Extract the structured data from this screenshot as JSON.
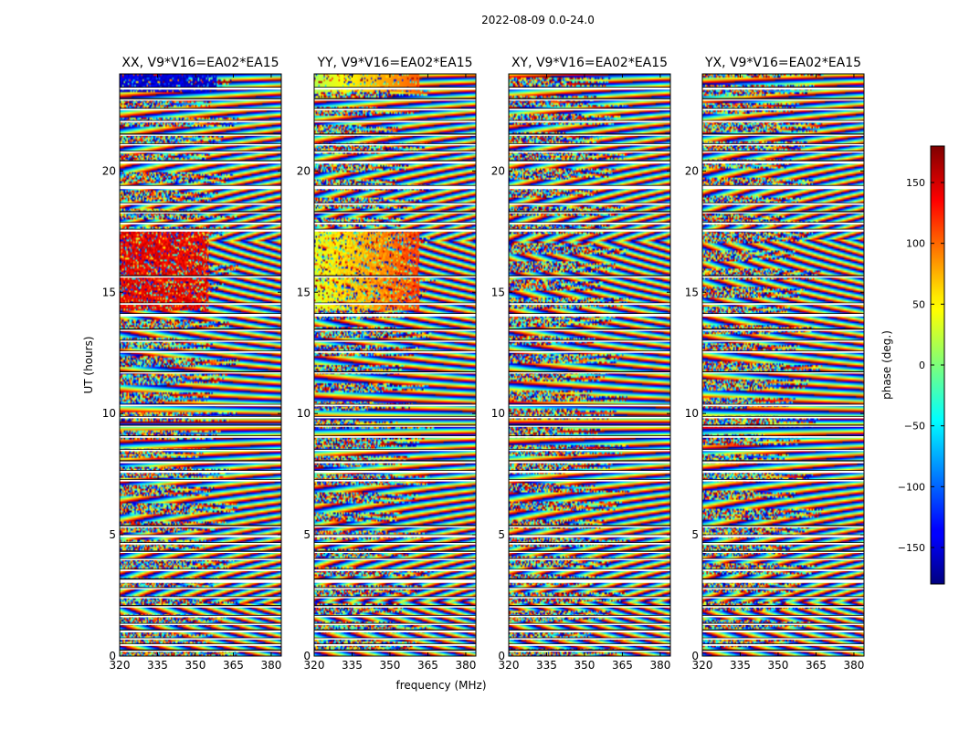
{
  "chart_data": {
    "type": "heatmap",
    "title": "2022-08-09 0.0-24.0",
    "xlabel": "frequency (MHz)",
    "ylabel": "UT (hours)",
    "xlim": [
      320,
      384
    ],
    "ylim": [
      0,
      24
    ],
    "xticks": [
      320,
      335,
      350,
      365,
      380
    ],
    "yticks": [
      0,
      5,
      10,
      15,
      20
    ],
    "panels": [
      {
        "title": "XX, V9*V16=EA02*EA15",
        "polarization": "XX"
      },
      {
        "title": "YY, V9*V16=EA02*EA15",
        "polarization": "YY"
      },
      {
        "title": "XY, V9*V16=EA02*EA15",
        "polarization": "XY"
      },
      {
        "title": "YX, V9*V16=EA02*EA15",
        "polarization": "YX"
      }
    ],
    "colorbar": {
      "label": "phase (deg.)",
      "range": [
        -180,
        180
      ],
      "ticks": [
        -150,
        -100,
        -50,
        0,
        50,
        100,
        150
      ],
      "colormap": "jet"
    },
    "flagged_time_bands_hours": [
      [
        0.18,
        0.25
      ],
      [
        0.42,
        0.5
      ],
      [
        0.68,
        0.75
      ],
      [
        0.98,
        1.08
      ],
      [
        1.28,
        1.35
      ],
      [
        1.6,
        1.68
      ],
      [
        2.0,
        2.08
      ],
      [
        2.38,
        2.45
      ],
      [
        2.75,
        2.82
      ],
      [
        3.02,
        3.18
      ],
      [
        3.5,
        3.58
      ],
      [
        3.95,
        4.02
      ],
      [
        4.25,
        4.32
      ],
      [
        4.6,
        4.68
      ],
      [
        4.9,
        5.0
      ],
      [
        5.3,
        5.38
      ],
      [
        7.2,
        7.28
      ],
      [
        7.55,
        7.65
      ],
      [
        7.95,
        8.05
      ],
      [
        8.45,
        8.52
      ],
      [
        9.0,
        9.08
      ],
      [
        9.45,
        9.52
      ],
      [
        9.8,
        9.88
      ],
      [
        10.3,
        10.38
      ],
      [
        11.65,
        11.72
      ],
      [
        12.5,
        12.58
      ],
      [
        12.95,
        13.02
      ],
      [
        13.4,
        13.48
      ],
      [
        14.0,
        14.12
      ],
      [
        14.48,
        14.56
      ],
      [
        15.6,
        15.68
      ],
      [
        17.5,
        17.6
      ],
      [
        17.8,
        17.88
      ],
      [
        18.25,
        18.32
      ],
      [
        18.6,
        18.68
      ],
      [
        19.25,
        19.4
      ],
      [
        20.3,
        20.42
      ],
      [
        20.75,
        20.82
      ],
      [
        21.05,
        21.12
      ],
      [
        21.45,
        21.52
      ],
      [
        22.0,
        22.08
      ],
      [
        22.5,
        22.58
      ],
      [
        22.9,
        22.98
      ],
      [
        23.35,
        23.45
      ]
    ]
  }
}
